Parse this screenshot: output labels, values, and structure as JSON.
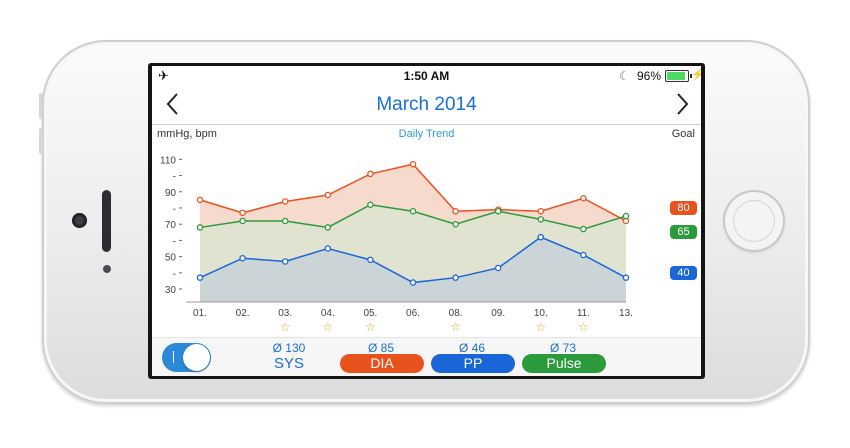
{
  "status_bar": {
    "airplane_icon": "✈",
    "time": "1:50 AM",
    "moon_icon": "☾",
    "battery_percent": "96%",
    "battery_level": 0.96,
    "bolt_icon": "⚡"
  },
  "nav": {
    "title": "March 2014",
    "prev_icon": "chevron-left",
    "next_icon": "chevron-right"
  },
  "chart_header": {
    "unit_label": "mmHg, bpm",
    "title": "Daily Trend",
    "goal_label": "Goal"
  },
  "colors": {
    "sys": "#1a66d8",
    "dia": "#e8521c",
    "pulse": "#2a9a3a",
    "pp_pill": "#1a66d8",
    "dia_fill": "#f5d6c8",
    "pulse_fill": "#dde3d0",
    "sys_fill": "#c9d3d8"
  },
  "chart_data": {
    "type": "line",
    "title": "Daily Trend",
    "ylabel": "mmHg, bpm",
    "xlabel": "",
    "x": [
      "01.",
      "02.",
      "03.",
      "04.",
      "05.",
      "06.",
      "08.",
      "09.",
      "10.",
      "11.",
      "13."
    ],
    "ylim": [
      22,
      117
    ],
    "y_ticks": [
      "30",
      "-",
      "50",
      "-",
      "70",
      "-",
      "90",
      "-",
      "110"
    ],
    "y_tick_values": [
      30,
      40,
      50,
      60,
      70,
      80,
      90,
      100,
      110
    ],
    "series": [
      {
        "key": "dia",
        "values": [
          85,
          77,
          84,
          88,
          101,
          107,
          78,
          79,
          78,
          86,
          72
        ]
      },
      {
        "key": "pulse",
        "values": [
          68,
          72,
          72,
          68,
          82,
          78,
          70,
          78,
          73,
          67,
          75
        ]
      },
      {
        "key": "sys",
        "values": [
          37,
          49,
          47,
          55,
          48,
          34,
          37,
          43,
          62,
          51,
          37
        ]
      }
    ],
    "starred_days": [
      "03.",
      "04.",
      "05.",
      "08.",
      "10.",
      "11."
    ],
    "goals": [
      {
        "key": "dia",
        "value": 80,
        "label": "80"
      },
      {
        "key": "pulse",
        "value": 65,
        "label": "65"
      },
      {
        "key": "sys",
        "value": 40,
        "label": "40"
      }
    ]
  },
  "star_icon": "☆",
  "footer": {
    "toggle_on": true,
    "sys": {
      "avg": "Ø 130",
      "label": "SYS"
    },
    "dia": {
      "avg": "Ø 85",
      "label": "DIA"
    },
    "pp": {
      "avg": "Ø 46",
      "label": "PP"
    },
    "pulse": {
      "avg": "Ø 73",
      "label": "Pulse"
    }
  }
}
